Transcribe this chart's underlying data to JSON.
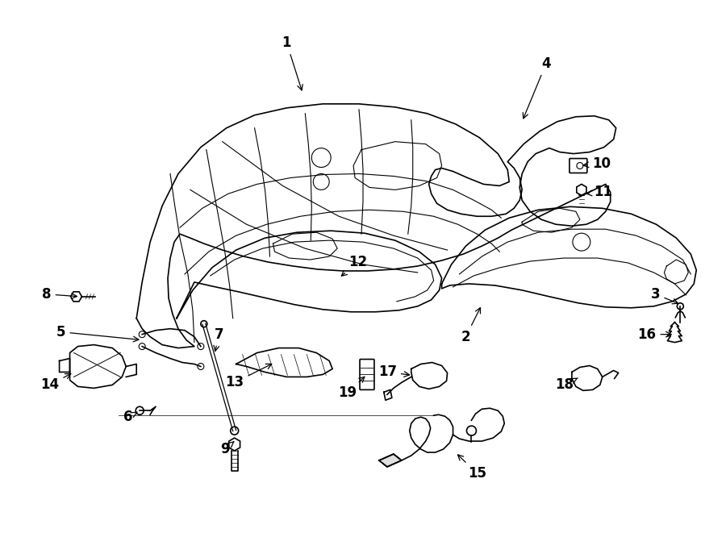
{
  "bg_color": "#ffffff",
  "line_color": "#000000",
  "font_size_label": 12
}
